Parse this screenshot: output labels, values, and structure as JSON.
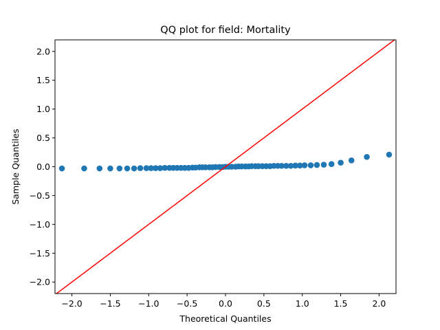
{
  "chart_data": {
    "type": "scatter",
    "title": "QQ plot for field: Mortality",
    "xlabel": "Theoretical Quantiles",
    "ylabel": "Sample Quantiles",
    "xlim": [
      -2.22,
      2.22
    ],
    "ylim": [
      -2.2,
      2.2
    ],
    "xticks": [
      -2.0,
      -1.5,
      -1.0,
      -0.5,
      0.0,
      0.5,
      1.0,
      1.5,
      2.0
    ],
    "xtick_labels": [
      "−2.0",
      "−1.5",
      "−1.0",
      "−0.5",
      "0.0",
      "0.5",
      "1.0",
      "1.5",
      "2.0"
    ],
    "yticks": [
      -2.0,
      -1.5,
      -1.0,
      -0.5,
      0.0,
      0.5,
      1.0,
      1.5,
      2.0
    ],
    "ytick_labels": [
      "−2.0",
      "−1.5",
      "−1.0",
      "−0.5",
      "0.0",
      "0.5",
      "1.0",
      "1.5",
      "2.0"
    ],
    "grid": false,
    "point_color": "#1f77b4",
    "line_color": "#ff0000",
    "reference_line": {
      "slope": 1,
      "intercept": 0
    },
    "x": [
      -2.13,
      -1.84,
      -1.64,
      -1.5,
      -1.38,
      -1.28,
      -1.19,
      -1.11,
      -1.03,
      -0.97,
      -0.91,
      -0.85,
      -0.79,
      -0.73,
      -0.68,
      -0.63,
      -0.58,
      -0.53,
      -0.48,
      -0.43,
      -0.39,
      -0.34,
      -0.3,
      -0.26,
      -0.21,
      -0.17,
      -0.13,
      -0.08,
      -0.04,
      0.0,
      0.04,
      0.08,
      0.13,
      0.17,
      0.21,
      0.26,
      0.3,
      0.34,
      0.39,
      0.43,
      0.48,
      0.53,
      0.58,
      0.63,
      0.68,
      0.73,
      0.79,
      0.85,
      0.91,
      0.97,
      1.03,
      1.11,
      1.19,
      1.28,
      1.38,
      1.5,
      1.64,
      1.84,
      2.13
    ],
    "y": [
      -0.03,
      -0.03,
      -0.03,
      -0.03,
      -0.03,
      -0.03,
      -0.03,
      -0.025,
      -0.025,
      -0.025,
      -0.025,
      -0.025,
      -0.02,
      -0.02,
      -0.02,
      -0.02,
      -0.02,
      -0.02,
      -0.02,
      -0.015,
      -0.015,
      -0.01,
      -0.01,
      -0.01,
      -0.01,
      -0.01,
      -0.005,
      -0.005,
      -0.005,
      0.0,
      0.0,
      0.0,
      0.0,
      0.005,
      0.005,
      0.005,
      0.005,
      0.01,
      0.01,
      0.01,
      0.01,
      0.01,
      0.01,
      0.015,
      0.015,
      0.015,
      0.015,
      0.015,
      0.02,
      0.02,
      0.025,
      0.025,
      0.03,
      0.035,
      0.045,
      0.07,
      0.11,
      0.17,
      0.21
    ]
  }
}
